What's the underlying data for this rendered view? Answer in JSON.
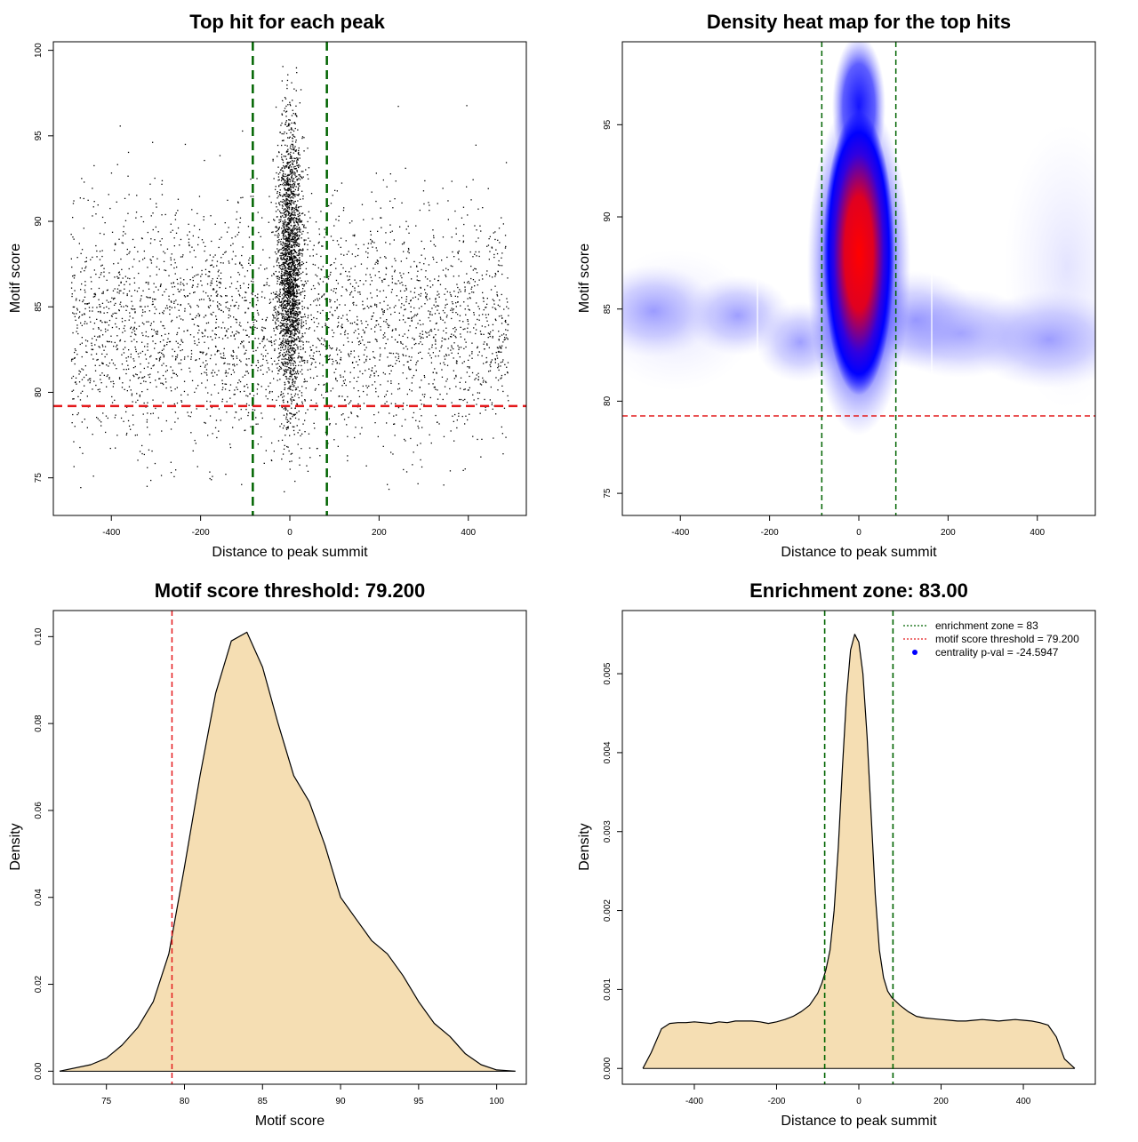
{
  "colors": {
    "threshold_line": "#e41a1c",
    "zone_line": "#006400",
    "density_fill": "#f5deb3",
    "heat_mid": "#0000ff",
    "heat_high": "#ff0000",
    "points": "#000000",
    "legend_point": "#0000ff"
  },
  "chart_data": [
    {
      "id": "scatter",
      "type": "scatter",
      "title": "Top hit for each peak",
      "xlabel": "Distance to peak summit",
      "ylabel": "Motif score",
      "xlim": [
        -530,
        530
      ],
      "ylim": [
        72.8,
        100.5
      ],
      "x_ticks": [
        -400,
        -200,
        0,
        200,
        400
      ],
      "y_ticks": [
        75,
        80,
        85,
        90,
        95,
        100
      ],
      "grid": false,
      "vlines": [
        -83,
        83
      ],
      "hline": 79.2,
      "point_model": {
        "background": {
          "n": 3300,
          "x_range": [
            -490,
            490
          ],
          "y_mean": 84.0,
          "y_sd": 3.6
        },
        "central": {
          "n": 2300,
          "x_mean": 0,
          "x_sd": 14,
          "y_mean": 87.5,
          "y_sd": 4.2
        }
      }
    },
    {
      "id": "heatmap",
      "type": "heatmap",
      "title": "Density heat map for the top hits",
      "xlabel": "Distance to peak summit",
      "ylabel": "Motif score",
      "xlim": [
        -530,
        530
      ],
      "ylim": [
        73.8,
        99.5
      ],
      "x_ticks": [
        -400,
        -200,
        0,
        200,
        400
      ],
      "y_ticks": [
        75,
        80,
        85,
        90,
        95
      ],
      "vlines": [
        -83,
        83
      ],
      "hline": 79.2,
      "density_peak": {
        "x": 0,
        "y": 88.5
      },
      "background_band_y": 84
    },
    {
      "id": "score-density",
      "type": "area",
      "title": "Motif score threshold: 79.200",
      "xlabel": "Motif score",
      "ylabel": "Density",
      "xlim": [
        71.6,
        101.9
      ],
      "ylim": [
        -0.003,
        0.106
      ],
      "x_ticks": [
        75,
        80,
        85,
        90,
        95,
        100
      ],
      "y_ticks": [
        "0.00",
        "0.02",
        "0.04",
        "0.06",
        "0.08",
        "0.10"
      ],
      "vline": 79.2,
      "x": [
        72,
        74,
        75,
        76,
        77,
        78,
        79,
        80,
        81,
        82,
        83,
        84,
        85,
        86,
        87,
        88,
        89,
        90,
        91,
        92,
        93,
        94,
        95,
        96,
        97,
        98,
        99,
        100,
        101.2
      ],
      "y": [
        0.0,
        0.0015,
        0.003,
        0.006,
        0.01,
        0.016,
        0.027,
        0.047,
        0.068,
        0.087,
        0.099,
        0.101,
        0.093,
        0.08,
        0.068,
        0.062,
        0.052,
        0.04,
        0.035,
        0.03,
        0.027,
        0.022,
        0.016,
        0.011,
        0.008,
        0.004,
        0.0015,
        0.0003,
        0.0
      ]
    },
    {
      "id": "distance-density",
      "type": "area",
      "title": "Enrichment zone: 83.00",
      "xlabel": "Distance to peak summit",
      "ylabel": "Density",
      "xlim": [
        -575,
        575
      ],
      "ylim": [
        -0.0002,
        0.0058
      ],
      "x_ticks": [
        -400,
        -200,
        0,
        200,
        400
      ],
      "y_ticks": [
        "0.000",
        "0.001",
        "0.002",
        "0.003",
        "0.004",
        "0.005"
      ],
      "vlines": [
        -83,
        83
      ],
      "x": [
        -525,
        -505,
        -480,
        -460,
        -440,
        -420,
        -400,
        -380,
        -360,
        -340,
        -320,
        -300,
        -280,
        -260,
        -240,
        -220,
        -200,
        -180,
        -160,
        -140,
        -120,
        -100,
        -90,
        -80,
        -70,
        -60,
        -50,
        -40,
        -30,
        -20,
        -10,
        0,
        10,
        20,
        30,
        40,
        50,
        60,
        70,
        80,
        90,
        100,
        120,
        140,
        160,
        180,
        200,
        220,
        240,
        260,
        280,
        300,
        320,
        340,
        360,
        380,
        400,
        420,
        440,
        460,
        480,
        500,
        525
      ],
      "y": [
        0.0,
        0.0002,
        0.0005,
        0.00057,
        0.00058,
        0.00058,
        0.00059,
        0.00058,
        0.00057,
        0.00059,
        0.00058,
        0.0006,
        0.0006,
        0.0006,
        0.00059,
        0.00057,
        0.00059,
        0.00062,
        0.00066,
        0.00072,
        0.0008,
        0.00095,
        0.00108,
        0.00125,
        0.0015,
        0.002,
        0.0028,
        0.0038,
        0.0047,
        0.0053,
        0.0055,
        0.0054,
        0.005,
        0.0042,
        0.0032,
        0.0022,
        0.0015,
        0.00115,
        0.00098,
        0.0009,
        0.00085,
        0.0008,
        0.00072,
        0.00066,
        0.00064,
        0.00063,
        0.00062,
        0.00061,
        0.0006,
        0.0006,
        0.00061,
        0.00062,
        0.00061,
        0.0006,
        0.00061,
        0.00062,
        0.00061,
        0.0006,
        0.00058,
        0.00055,
        0.0004,
        0.00012,
        0.0
      ],
      "legend": {
        "position": "top-right",
        "entries": [
          {
            "label": "enrichment zone = 83",
            "style": "dotted-line",
            "color": "#006400"
          },
          {
            "label": "motif score threshold = 79.200",
            "style": "dotted-line",
            "color": "#e41a1c"
          },
          {
            "label": "centrality p-val = -24.5947",
            "style": "point",
            "color": "#0000ff"
          }
        ]
      }
    }
  ]
}
